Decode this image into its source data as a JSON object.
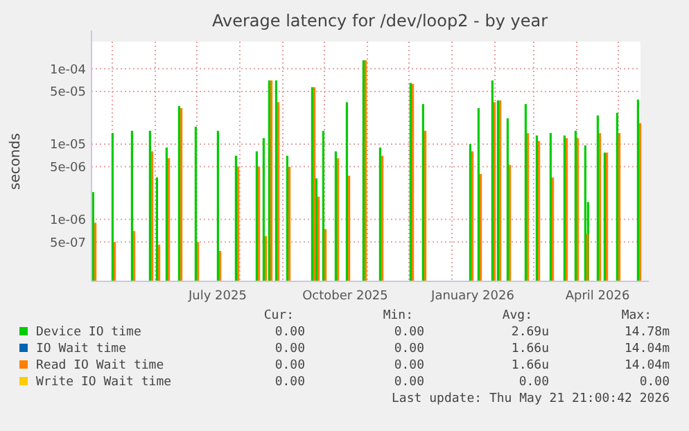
{
  "chart_data": {
    "type": "bar",
    "title": "Average latency for /dev/loop2 - by year",
    "ylabel": "seconds",
    "log": "y",
    "grid": true,
    "legend": "bottom",
    "xlim": [
      "2025-04-16",
      "2026-05-17"
    ],
    "xticks": [
      {
        "value": "2025-05-01",
        "label": null
      },
      {
        "value": "2025-06-01",
        "label": null
      },
      {
        "value": "2025-07-01",
        "label": null
      },
      {
        "value": "2025-07-16",
        "label": "July 2025"
      },
      {
        "value": "2025-08-01",
        "label": null
      },
      {
        "value": "2025-09-01",
        "label": null
      },
      {
        "value": "2025-10-01",
        "label": null
      },
      {
        "value": "2025-10-16",
        "label": "October 2025"
      },
      {
        "value": "2025-11-01",
        "label": null
      },
      {
        "value": "2025-12-01",
        "label": null
      },
      {
        "value": "2026-01-01",
        "label": null
      },
      {
        "value": "2026-01-16",
        "label": "January 2026"
      },
      {
        "value": "2026-02-01",
        "label": null
      },
      {
        "value": "2026-03-01",
        "label": null
      },
      {
        "value": "2026-04-01",
        "label": null
      },
      {
        "value": "2026-04-16",
        "label": "April 2026"
      },
      {
        "value": "2026-05-01",
        "label": null
      }
    ],
    "ylim": [
      1.5e-07,
      0.00023
    ],
    "yticks": [
      {
        "value": 5e-07,
        "label": "5e-07"
      },
      {
        "value": 1e-06,
        "label": "1e-06"
      },
      {
        "value": 5e-06,
        "label": "5e-06"
      },
      {
        "value": 1e-05,
        "label": "1e-05"
      },
      {
        "value": 5e-05,
        "label": "5e-05"
      },
      {
        "value": 0.0001,
        "label": "1e-04"
      }
    ],
    "x": [
      "2025-04-18",
      "2025-05-02",
      "2025-05-16",
      "2025-05-29",
      "2025-06-03",
      "2025-06-10",
      "2025-06-19",
      "2025-07-01",
      "2025-07-17",
      "2025-07-30",
      "2025-08-14",
      "2025-08-19",
      "2025-08-23",
      "2025-08-28",
      "2025-09-05",
      "2025-09-23",
      "2025-09-26",
      "2025-10-01",
      "2025-10-10",
      "2025-10-18",
      "2025-10-30",
      "2025-11-11",
      "2025-12-03",
      "2025-12-12",
      "2026-01-15",
      "2026-01-21",
      "2026-01-31",
      "2026-02-04",
      "2026-02-11",
      "2026-02-24",
      "2026-03-04",
      "2026-03-14",
      "2026-03-24",
      "2026-04-01",
      "2026-04-08",
      "2026-04-10",
      "2026-04-17",
      "2026-04-22",
      "2026-05-01",
      "2026-05-16"
    ],
    "series": [
      {
        "name": "Device IO time",
        "color": "#00cc00",
        "values": [
          2.3e-06,
          1.4e-05,
          1.5e-05,
          1.5e-05,
          3.6e-06,
          9e-06,
          3.2e-05,
          1.7e-05,
          1.5e-05,
          7e-06,
          8e-06,
          1.2e-05,
          7e-05,
          7e-05,
          7e-06,
          5.7e-05,
          3.5e-06,
          1.5e-05,
          8e-06,
          3.6e-05,
          0.00013,
          9e-06,
          6.5e-05,
          3.4e-05,
          1e-05,
          3e-05,
          7e-05,
          3.8e-05,
          2.2e-05,
          3.4e-05,
          1.3e-05,
          1.4e-05,
          1.3e-05,
          1.5e-05,
          9.6e-06,
          1.7e-06,
          2.4e-05,
          7.7e-06,
          2.6e-05,
          3.9e-05
        ]
      },
      {
        "name": "IO Wait time",
        "color": "#0066b3",
        "values": [
          null,
          null,
          null,
          null,
          null,
          null,
          null,
          null,
          null,
          null,
          null,
          null,
          null,
          null,
          null,
          null,
          null,
          null,
          null,
          null,
          null,
          null,
          null,
          null,
          null,
          null,
          null,
          null,
          null,
          null,
          null,
          null,
          null,
          null,
          null,
          null,
          null,
          null,
          null,
          null
        ]
      },
      {
        "name": "Read IO Wait time",
        "color": "#ff8000",
        "values": [
          9e-07,
          5e-07,
          7e-07,
          8e-06,
          4.6e-07,
          6.5e-06,
          3e-05,
          5e-07,
          3.8e-07,
          5e-06,
          5e-06,
          6e-07,
          7e-05,
          3.6e-05,
          5e-06,
          5.7e-05,
          2e-06,
          7.4e-07,
          6.5e-06,
          3.8e-06,
          0.00013,
          7e-06,
          6.3e-05,
          1.5e-05,
          8e-06,
          4e-06,
          3.6e-05,
          3.8e-05,
          5.3e-06,
          1.4e-05,
          1.1e-05,
          3.6e-06,
          1.2e-05,
          1.2e-05,
          6.4e-07,
          null,
          1.4e-05,
          7.7e-06,
          1.4e-05,
          1.9e-05
        ]
      },
      {
        "name": "Write IO Wait time",
        "color": "#ffcc00",
        "values": [
          null,
          null,
          null,
          null,
          null,
          null,
          null,
          null,
          null,
          null,
          null,
          null,
          null,
          null,
          null,
          null,
          null,
          null,
          null,
          null,
          null,
          null,
          null,
          null,
          null,
          null,
          null,
          null,
          null,
          null,
          null,
          null,
          null,
          null,
          null,
          null,
          null,
          null,
          null,
          null
        ]
      }
    ],
    "annotations": [
      "Cur:",
      "Min:",
      "Avg:",
      "Max:",
      "0.00",
      "0.00",
      "2.69u",
      "14.78m",
      "0.00",
      "0.00",
      "1.66u",
      "14.04m",
      "0.00",
      "0.00",
      "1.66u",
      "14.04m",
      "0.00",
      "0.00",
      "0.00",
      "0.00",
      "Last update: Thu May 21 21:00:42 2026"
    ]
  }
}
